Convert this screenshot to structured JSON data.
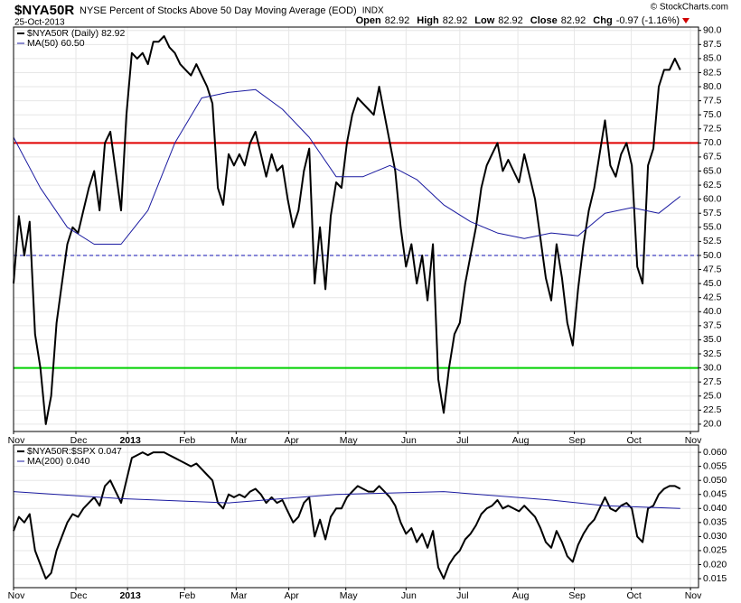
{
  "chart_data": [
    {
      "type": "line",
      "symbol": "$NYA50R",
      "title": "NYSE Percent of Stocks Above 50 Day Moving Average (EOD)",
      "exchange": "INDX",
      "date": "25-Oct-2013",
      "source": "© StockCharts.com",
      "quote": [
        {
          "label": "Open",
          "value": "82.92"
        },
        {
          "label": "High",
          "value": "82.92"
        },
        {
          "label": "Low",
          "value": "82.92"
        },
        {
          "label": "Close",
          "value": "82.92"
        },
        {
          "label": "Chg",
          "value": "-0.97 (-1.16%)"
        }
      ],
      "xlim": [
        0,
        127.4
      ],
      "xticks": [
        {
          "value": 0,
          "label": "Nov"
        },
        {
          "value": 11.6,
          "label": "Dec"
        },
        {
          "value": 21.2,
          "label": "2013"
        },
        {
          "value": 31.8,
          "label": "Feb"
        },
        {
          "value": 41.4,
          "label": "Mar"
        },
        {
          "value": 51.2,
          "label": "Apr"
        },
        {
          "value": 61.8,
          "label": "May"
        },
        {
          "value": 73,
          "label": "Jun"
        },
        {
          "value": 83,
          "label": "Jul"
        },
        {
          "value": 93.8,
          "label": "Aug"
        },
        {
          "value": 104.3,
          "label": "Sep"
        },
        {
          "value": 114.9,
          "label": "Oct"
        },
        {
          "value": 125.9,
          "label": "Nov"
        }
      ],
      "ylim": [
        18.7,
        90.6
      ],
      "yticks": [
        {
          "value": 20,
          "label": "20.0"
        },
        22.5,
        {
          "value": 25,
          "label": "25.0"
        },
        27.5,
        {
          "value": 30,
          "label": "30.0"
        },
        32.5,
        {
          "value": 35,
          "label": "35.0"
        },
        37.5,
        {
          "value": 40,
          "label": "40.0"
        },
        42.5,
        {
          "value": 45,
          "label": "45.0"
        },
        47.5,
        {
          "value": 50,
          "label": "50.0"
        },
        52.5,
        {
          "value": 55,
          "label": "55.0"
        },
        57.5,
        {
          "value": 60,
          "label": "60.0"
        },
        62.5,
        {
          "value": 65,
          "label": "65.0"
        },
        67.5,
        {
          "value": 70,
          "label": "70.0"
        },
        72.5,
        {
          "value": 75,
          "label": "75.0"
        },
        77.5,
        {
          "value": 80,
          "label": "80.0"
        },
        82.5,
        {
          "value": 85,
          "label": "85.0"
        },
        87.5,
        {
          "value": 90,
          "label": "90.0"
        }
      ],
      "grid": true,
      "reference_lines": [
        {
          "value": 70,
          "color": "#e00000",
          "style": "solid"
        },
        {
          "value": 50,
          "color": "#1010b0",
          "style": "dashed"
        },
        {
          "value": 30,
          "color": "#00d000",
          "style": "solid"
        }
      ],
      "series": [
        {
          "name": "$NYA50R (Daily) 82.92",
          "color": "#000000",
          "width": 2,
          "values": [
            45,
            57,
            50,
            56,
            36,
            30,
            20,
            25,
            38,
            45,
            52,
            55,
            54,
            58,
            62,
            65,
            58,
            70,
            72,
            65,
            58,
            75,
            86,
            85,
            86,
            84,
            88,
            88,
            89,
            87,
            86,
            84,
            83,
            82,
            84,
            82,
            80,
            77,
            62,
            59,
            68,
            66,
            68,
            66,
            70,
            72,
            68,
            64,
            68,
            65,
            66,
            60,
            55,
            58,
            65,
            69,
            45,
            55,
            44,
            57,
            63,
            62,
            70,
            75,
            78,
            77,
            76,
            75,
            80,
            75,
            70,
            65,
            55,
            48,
            52,
            45,
            50,
            42,
            52,
            28,
            22,
            30,
            36,
            38,
            45,
            50,
            55,
            62,
            66,
            68,
            70,
            65,
            67,
            65,
            63,
            68,
            64,
            60,
            53,
            46,
            42,
            52,
            46,
            38,
            34,
            44,
            52,
            58,
            62,
            68,
            74,
            66,
            64,
            68,
            70,
            66,
            48,
            45,
            66,
            69,
            80,
            83,
            83,
            85,
            83
          ]
        },
        {
          "name": "MA(50) 60.50",
          "color": "#1a1aa0",
          "width": 1,
          "x": [
            0,
            5,
            10,
            15,
            20,
            25,
            30,
            35,
            40,
            45,
            50,
            55,
            60,
            65,
            70,
            75,
            80,
            85,
            90,
            95,
            100,
            105,
            110,
            115,
            120,
            124
          ],
          "values": [
            71,
            62,
            55,
            52,
            52,
            58,
            70,
            78,
            79,
            79.5,
            76,
            71,
            64,
            64,
            66,
            63.5,
            59,
            56,
            54,
            53,
            54,
            53.5,
            57.5,
            58.5,
            57.5,
            60.5
          ]
        }
      ]
    },
    {
      "type": "line",
      "xlim": [
        0,
        127.4
      ],
      "xticks": [
        {
          "value": 0,
          "label": "Nov"
        },
        {
          "value": 11.6,
          "label": "Dec"
        },
        {
          "value": 21.2,
          "label": "2013"
        },
        {
          "value": 31.8,
          "label": "Feb"
        },
        {
          "value": 41.4,
          "label": "Mar"
        },
        {
          "value": 51.2,
          "label": "Apr"
        },
        {
          "value": 61.8,
          "label": "May"
        },
        {
          "value": 73,
          "label": "Jun"
        },
        {
          "value": 83,
          "label": "Jul"
        },
        {
          "value": 93.8,
          "label": "Aug"
        },
        {
          "value": 104.3,
          "label": "Sep"
        },
        {
          "value": 114.9,
          "label": "Oct"
        },
        {
          "value": 125.9,
          "label": "Nov"
        }
      ],
      "ylim": [
        0.0118,
        0.0626
      ],
      "yticks": [
        0.015,
        {
          "value": 0.02,
          "label": "0.020"
        },
        0.025,
        {
          "value": 0.03,
          "label": "0.030"
        },
        0.035,
        {
          "value": 0.04,
          "label": "0.040"
        },
        0.045,
        {
          "value": 0.05,
          "label": "0.050"
        },
        0.055,
        {
          "value": 0.06,
          "label": "0.060"
        }
      ],
      "grid": true,
      "series": [
        {
          "name": "$NYA50R:$SPX 0.047",
          "color": "#000000",
          "width": 2,
          "values": [
            0.032,
            0.037,
            0.035,
            0.038,
            0.025,
            0.02,
            0.015,
            0.017,
            0.025,
            0.03,
            0.035,
            0.038,
            0.037,
            0.04,
            0.042,
            0.044,
            0.041,
            0.048,
            0.05,
            0.046,
            0.042,
            0.05,
            0.058,
            0.059,
            0.06,
            0.059,
            0.06,
            0.06,
            0.06,
            0.059,
            0.058,
            0.057,
            0.056,
            0.055,
            0.056,
            0.054,
            0.052,
            0.05,
            0.042,
            0.04,
            0.045,
            0.044,
            0.045,
            0.044,
            0.046,
            0.047,
            0.045,
            0.042,
            0.044,
            0.042,
            0.043,
            0.039,
            0.035,
            0.037,
            0.042,
            0.044,
            0.03,
            0.036,
            0.029,
            0.037,
            0.04,
            0.04,
            0.044,
            0.046,
            0.048,
            0.047,
            0.046,
            0.046,
            0.048,
            0.046,
            0.044,
            0.041,
            0.035,
            0.031,
            0.033,
            0.028,
            0.031,
            0.026,
            0.032,
            0.019,
            0.015,
            0.02,
            0.023,
            0.025,
            0.029,
            0.031,
            0.034,
            0.038,
            0.04,
            0.041,
            0.043,
            0.04,
            0.041,
            0.04,
            0.039,
            0.041,
            0.039,
            0.037,
            0.033,
            0.028,
            0.026,
            0.032,
            0.028,
            0.023,
            0.021,
            0.027,
            0.031,
            0.034,
            0.036,
            0.04,
            0.044,
            0.04,
            0.039,
            0.041,
            0.042,
            0.04,
            0.03,
            0.028,
            0.04,
            0.041,
            0.045,
            0.047,
            0.048,
            0.048,
            0.047
          ]
        },
        {
          "name": "MA(200) 0.040",
          "color": "#1a1aa0",
          "width": 1,
          "x": [
            0,
            20,
            40,
            60,
            80,
            100,
            110,
            124
          ],
          "values": [
            0.046,
            0.0435,
            0.042,
            0.045,
            0.046,
            0.043,
            0.041,
            0.04
          ]
        }
      ]
    }
  ]
}
